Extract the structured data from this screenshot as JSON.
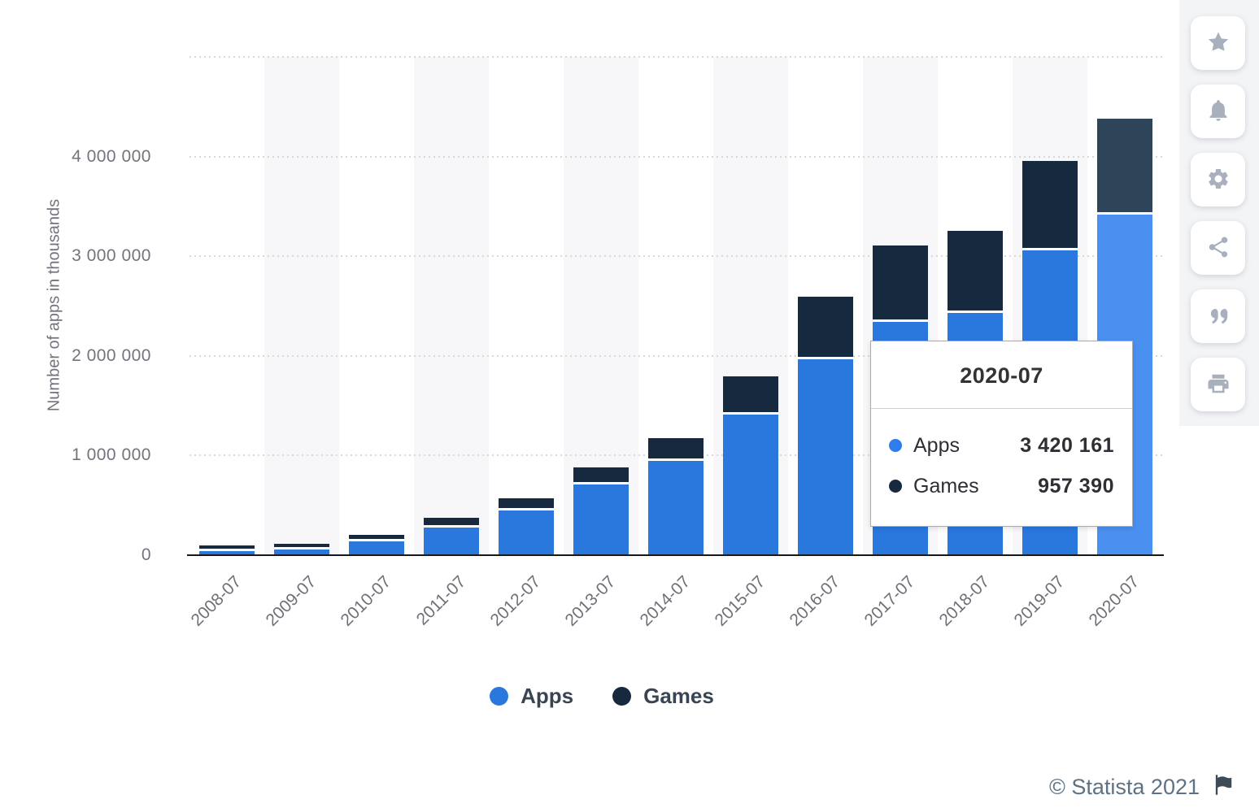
{
  "chart_data": {
    "type": "bar",
    "stacked": true,
    "title": "",
    "ylabel": "Number of apps in thousands",
    "xlabel": "",
    "grid": "horizontal-dotted",
    "legend_position": "bottom",
    "ylim": [
      0,
      5000000
    ],
    "categories": [
      "2008-07",
      "2009-07",
      "2010-07",
      "2011-07",
      "2012-07",
      "2013-07",
      "2014-07",
      "2015-07",
      "2016-07",
      "2017-07",
      "2018-07",
      "2019-07",
      "2020-07"
    ],
    "series": [
      {
        "name": "Apps",
        "color": "#2a77de",
        "highlight_color": "#4a90f0",
        "values": [
          45000,
          55000,
          142000,
          276000,
          448000,
          713000,
          945000,
          1412000,
          1970000,
          2342000,
          2434000,
          3057000,
          3420161
        ]
      },
      {
        "name": "Games",
        "color": "#16293e",
        "highlight_color": "#2e4459",
        "values": [
          51000,
          57000,
          60000,
          99000,
          123000,
          167000,
          233000,
          385000,
          628000,
          767000,
          823000,
          902000,
          957390
        ]
      }
    ],
    "yticks": [
      {
        "value": 0,
        "label": "0"
      },
      {
        "value": 1000000,
        "label": "1 000 000"
      },
      {
        "value": 2000000,
        "label": "2 000 000"
      },
      {
        "value": 3000000,
        "label": "3 000 000"
      },
      {
        "value": 4000000,
        "label": "4 000 000"
      },
      {
        "value": 5000000,
        "label": ""
      }
    ],
    "highlighted_category": "2020-07"
  },
  "tooltip": {
    "title": "2020-07",
    "rows": [
      {
        "label": "Apps",
        "value": "3 420 161",
        "color": "#2f7ded"
      },
      {
        "label": "Games",
        "value": "957 390",
        "color": "#16293e"
      }
    ]
  },
  "legend": {
    "items": [
      {
        "label": "Apps",
        "color": "#2a77de"
      },
      {
        "label": "Games",
        "color": "#16293e"
      }
    ]
  },
  "sidebar": {
    "buttons": [
      {
        "icon": "star-icon"
      },
      {
        "icon": "bell-icon"
      },
      {
        "icon": "gear-icon"
      },
      {
        "icon": "share-icon"
      },
      {
        "icon": "quote-icon"
      },
      {
        "icon": "print-icon"
      }
    ]
  },
  "footer": {
    "copyright": "© Statista 2021",
    "flag_icon": "flag-icon"
  }
}
